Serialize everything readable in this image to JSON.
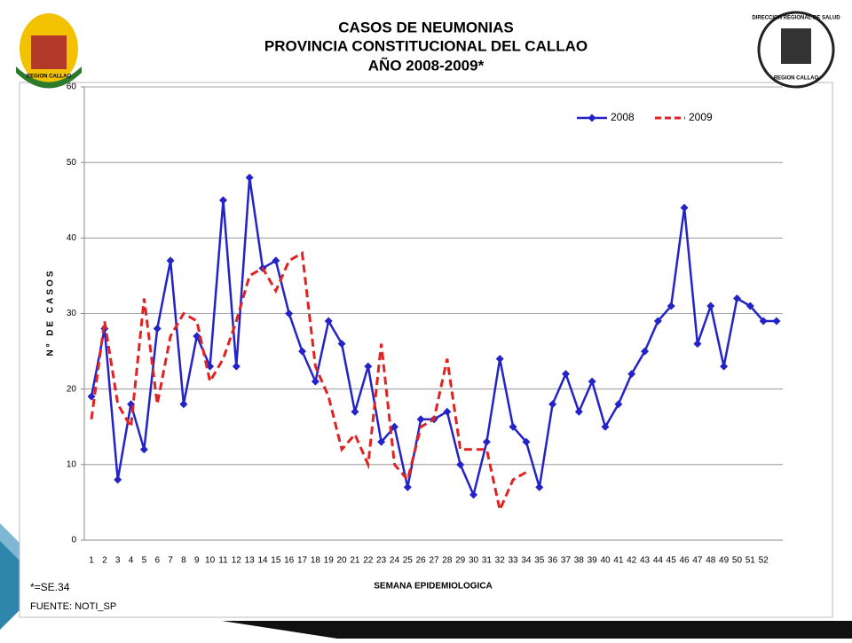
{
  "chart_data": {
    "type": "line",
    "title": [
      "CASOS DE NEUMONIAS",
      "PROVINCIA CONSTITUCIONAL DEL CALLAO",
      "AÑO 2008-2009*"
    ],
    "y_label": "Nº DE CASOS",
    "x_label": "SEMANA EPIDEMIOLOGICA",
    "footnotes": [
      "*=SE.34",
      "FUENTE: NOTI_SP"
    ],
    "logos": [
      "REGION CALLAO",
      "DIRECCION REGIONAL DE SALUD",
      "REGION CALLAO"
    ],
    "categories": [
      "1",
      "2",
      "3",
      "4",
      "5",
      "6",
      "7",
      "8",
      "9",
      "10",
      "11",
      "12",
      "13",
      "14",
      "15",
      "16",
      "17",
      "18",
      "19",
      "20",
      "21",
      "22",
      "23",
      "24",
      "25",
      "26",
      "27",
      "28",
      "29",
      "30",
      "31",
      "32",
      "33",
      "34",
      "35",
      "36",
      "37",
      "38",
      "39",
      "40",
      "41",
      "42",
      "43",
      "44",
      "45",
      "46",
      "47",
      "48",
      "49",
      "50",
      "51",
      "52",
      null
    ],
    "series": [
      {
        "name": "2008",
        "color": "#2323c8",
        "dashed": false,
        "marker": "diamond",
        "values": [
          19,
          28,
          8,
          18,
          12,
          28,
          37,
          18,
          27,
          23,
          45,
          23,
          48,
          36,
          37,
          30,
          25,
          21,
          29,
          26,
          17,
          23,
          13,
          15,
          7,
          16,
          16,
          17,
          10,
          6,
          13,
          24,
          15,
          13,
          7,
          18,
          22,
          17,
          21,
          15,
          18,
          22,
          25,
          29,
          31,
          44,
          26,
          31,
          23,
          32,
          31,
          29,
          29
        ]
      },
      {
        "name": "2009",
        "color": "#e02222",
        "dashed": true,
        "marker": null,
        "values": [
          16,
          29,
          18,
          15,
          32,
          18,
          27,
          30,
          29,
          21,
          24,
          29,
          35,
          36,
          33,
          37,
          38,
          23,
          19,
          12,
          14,
          10,
          26,
          10,
          8,
          15,
          16,
          24,
          12,
          12,
          12,
          4,
          8,
          9,
          null,
          null,
          null,
          null,
          null,
          null,
          null,
          null,
          null,
          null,
          null,
          null,
          null,
          null,
          null,
          null,
          null,
          null,
          null
        ]
      }
    ],
    "ylim": [
      0,
      60
    ],
    "yticks": [
      0,
      10,
      20,
      30,
      40,
      50,
      60
    ],
    "grid": true,
    "legend": "top-right"
  }
}
